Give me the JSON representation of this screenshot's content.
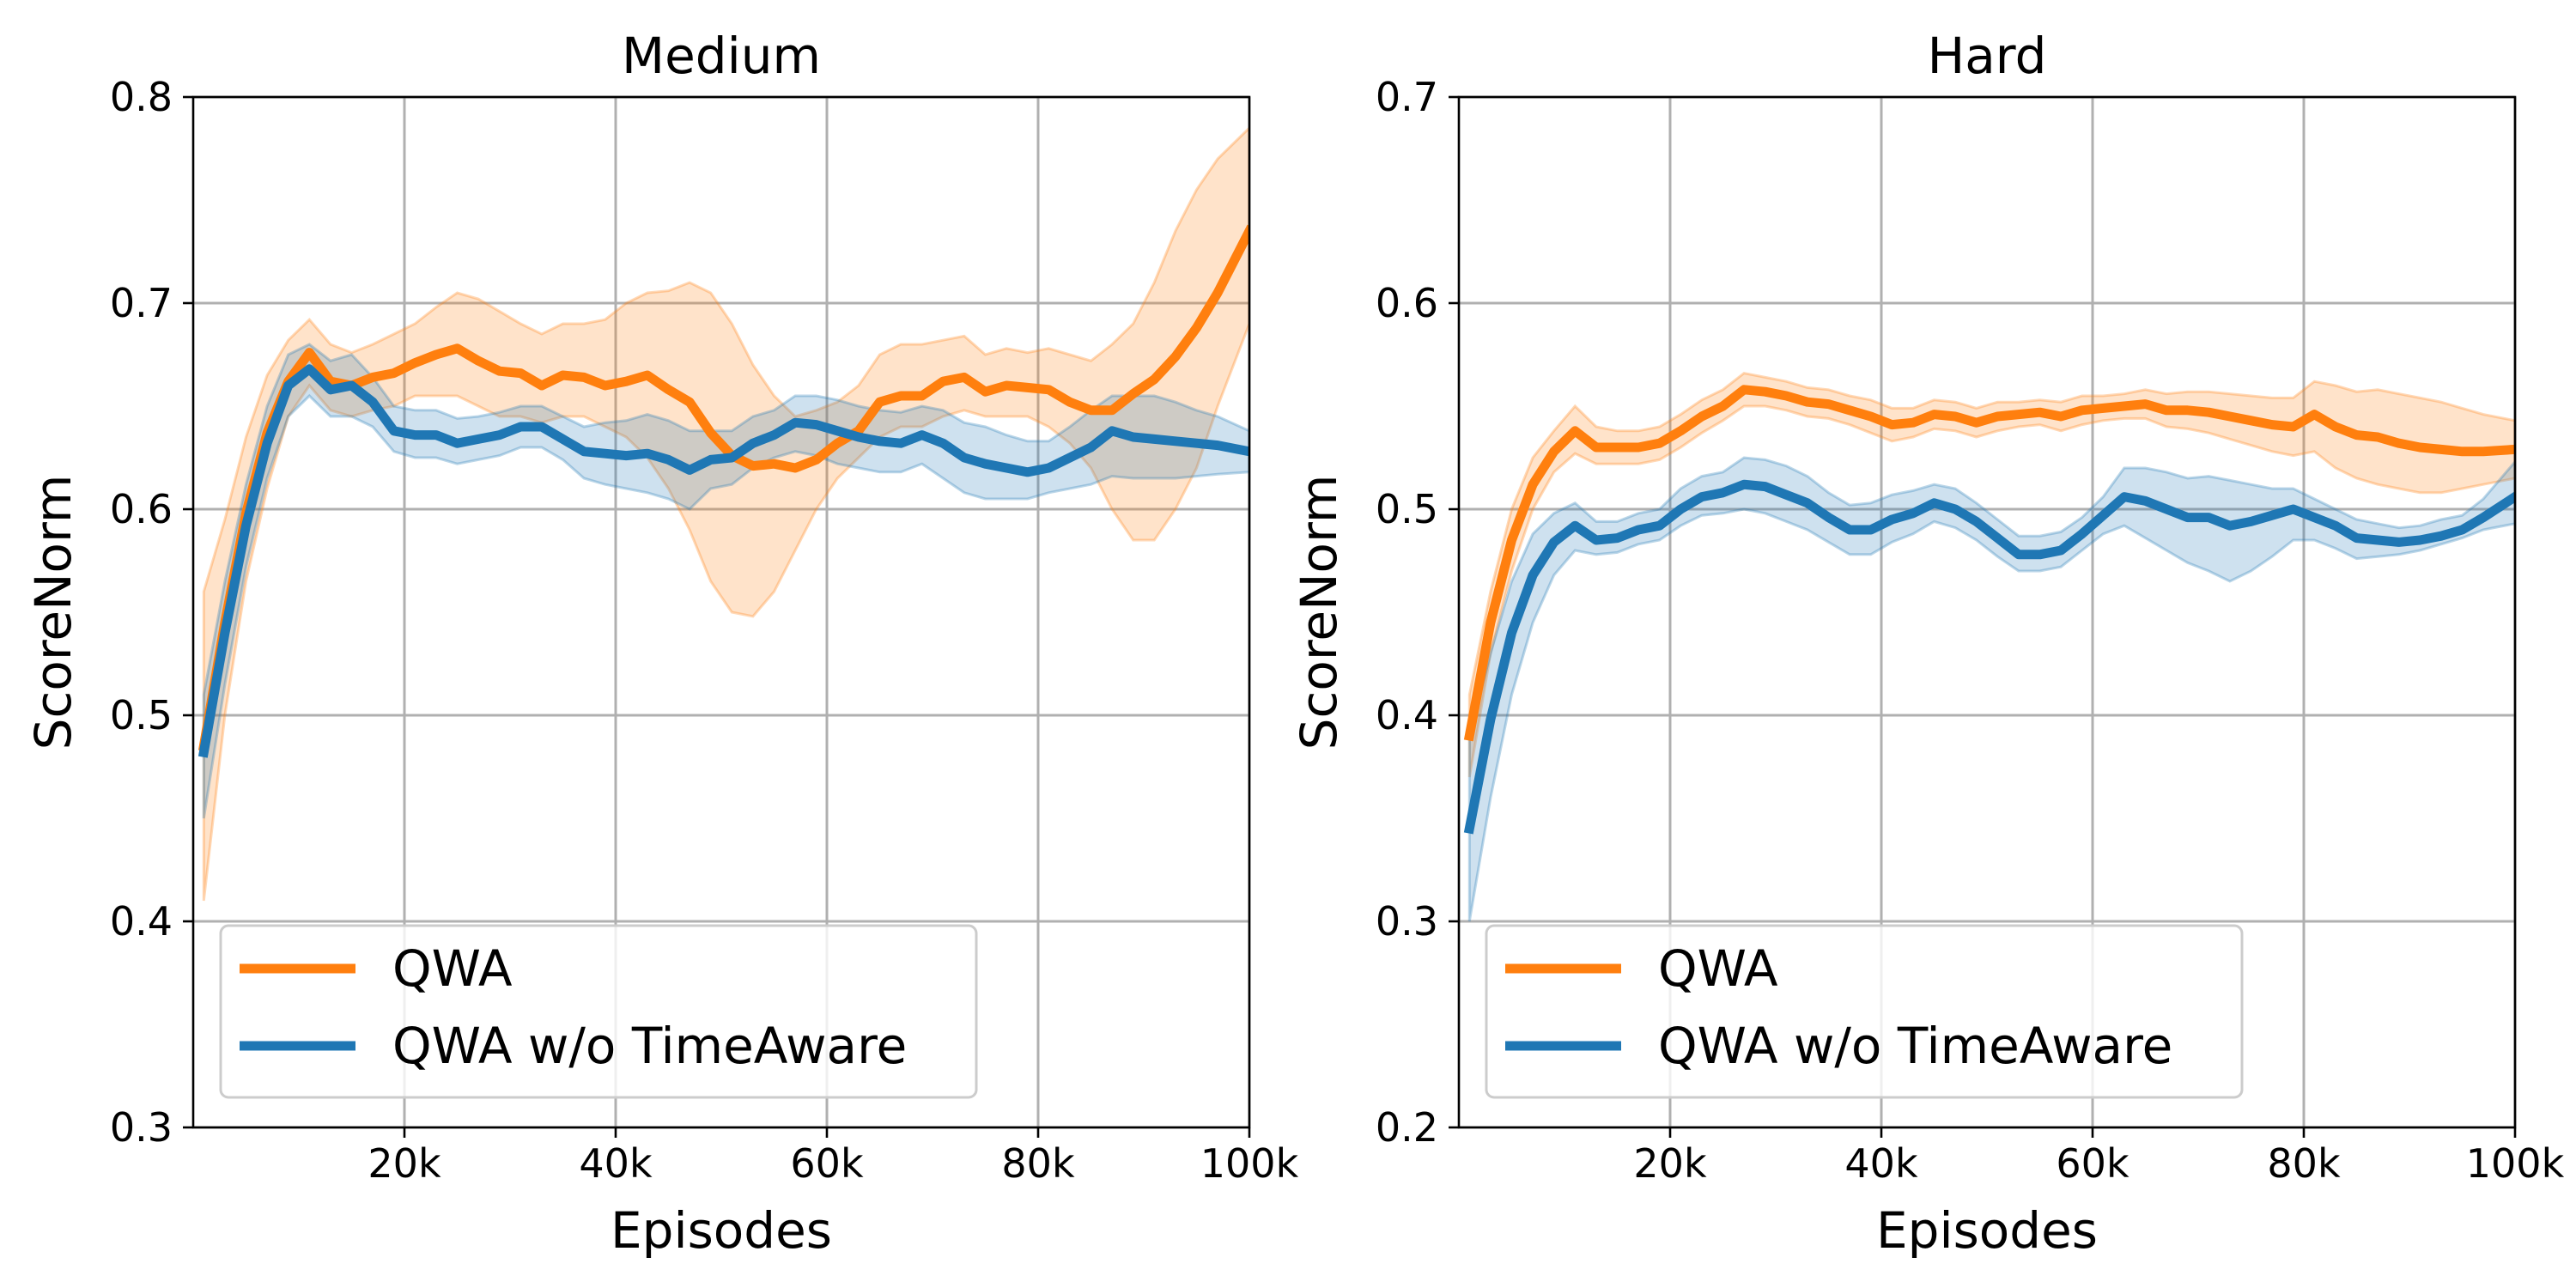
{
  "chart_data": [
    {
      "type": "line",
      "title": "Medium",
      "xlabel": "Episodes",
      "ylabel": "ScoreNorm",
      "xlim": [
        0,
        100000
      ],
      "ylim": [
        0.3,
        0.8
      ],
      "grid": true,
      "legend_position": "lower-left",
      "xticks": [
        20000,
        40000,
        60000,
        80000,
        100000
      ],
      "xtick_labels": [
        "20k",
        "40k",
        "60k",
        "80k",
        "100k"
      ],
      "yticks": [
        0.3,
        0.4,
        0.5,
        0.6,
        0.7,
        0.8
      ],
      "ytick_labels": [
        "0.3",
        "0.4",
        "0.5",
        "0.6",
        "0.7",
        "0.8"
      ],
      "series": [
        {
          "name": "QWA",
          "color": "#ff7f0e",
          "x": [
            1000,
            3000,
            5000,
            7000,
            9000,
            11000,
            13000,
            15000,
            17000,
            19000,
            21000,
            23000,
            25000,
            27000,
            29000,
            31000,
            33000,
            35000,
            37000,
            39000,
            41000,
            43000,
            45000,
            47000,
            49000,
            51000,
            53000,
            55000,
            57000,
            59000,
            61000,
            63000,
            65000,
            67000,
            69000,
            71000,
            73000,
            75000,
            77000,
            79000,
            81000,
            83000,
            85000,
            87000,
            89000,
            91000,
            93000,
            95000,
            97000,
            100000
          ],
          "values": [
            0.485,
            0.545,
            0.598,
            0.637,
            0.662,
            0.676,
            0.662,
            0.66,
            0.664,
            0.666,
            0.671,
            0.675,
            0.678,
            0.672,
            0.667,
            0.666,
            0.66,
            0.665,
            0.664,
            0.66,
            0.662,
            0.665,
            0.658,
            0.652,
            0.637,
            0.626,
            0.621,
            0.622,
            0.62,
            0.624,
            0.632,
            0.638,
            0.652,
            0.655,
            0.655,
            0.662,
            0.664,
            0.657,
            0.66,
            0.659,
            0.658,
            0.652,
            0.648,
            0.648,
            0.656,
            0.663,
            0.674,
            0.688,
            0.705,
            0.735
          ],
          "lower": [
            0.41,
            0.5,
            0.565,
            0.61,
            0.645,
            0.66,
            0.648,
            0.645,
            0.648,
            0.65,
            0.655,
            0.655,
            0.655,
            0.65,
            0.645,
            0.645,
            0.642,
            0.645,
            0.645,
            0.64,
            0.635,
            0.625,
            0.61,
            0.59,
            0.565,
            0.55,
            0.548,
            0.56,
            0.58,
            0.6,
            0.615,
            0.625,
            0.635,
            0.64,
            0.64,
            0.645,
            0.648,
            0.645,
            0.645,
            0.645,
            0.64,
            0.632,
            0.62,
            0.6,
            0.585,
            0.585,
            0.6,
            0.62,
            0.65,
            0.69
          ],
          "upper": [
            0.56,
            0.595,
            0.635,
            0.665,
            0.682,
            0.692,
            0.68,
            0.676,
            0.68,
            0.685,
            0.69,
            0.698,
            0.705,
            0.702,
            0.696,
            0.69,
            0.685,
            0.69,
            0.69,
            0.692,
            0.7,
            0.705,
            0.706,
            0.71,
            0.705,
            0.69,
            0.67,
            0.655,
            0.645,
            0.648,
            0.652,
            0.66,
            0.675,
            0.68,
            0.68,
            0.682,
            0.684,
            0.675,
            0.678,
            0.676,
            0.678,
            0.675,
            0.672,
            0.68,
            0.69,
            0.71,
            0.735,
            0.755,
            0.77,
            0.785
          ]
        },
        {
          "name": "QWA w/o TimeAware",
          "color": "#1f77b4",
          "x": [
            1000,
            3000,
            5000,
            7000,
            9000,
            11000,
            13000,
            15000,
            17000,
            19000,
            21000,
            23000,
            25000,
            27000,
            29000,
            31000,
            33000,
            35000,
            37000,
            39000,
            41000,
            43000,
            45000,
            47000,
            49000,
            51000,
            53000,
            55000,
            57000,
            59000,
            61000,
            63000,
            65000,
            67000,
            69000,
            71000,
            73000,
            75000,
            77000,
            79000,
            81000,
            83000,
            85000,
            87000,
            89000,
            91000,
            93000,
            95000,
            97000,
            100000
          ],
          "values": [
            0.482,
            0.54,
            0.592,
            0.632,
            0.66,
            0.668,
            0.658,
            0.66,
            0.652,
            0.638,
            0.636,
            0.636,
            0.632,
            0.634,
            0.636,
            0.64,
            0.64,
            0.634,
            0.628,
            0.627,
            0.626,
            0.627,
            0.624,
            0.619,
            0.624,
            0.625,
            0.632,
            0.636,
            0.642,
            0.641,
            0.638,
            0.635,
            0.633,
            0.632,
            0.636,
            0.632,
            0.625,
            0.622,
            0.62,
            0.618,
            0.62,
            0.625,
            0.63,
            0.638,
            0.635,
            0.634,
            0.633,
            0.632,
            0.631,
            0.628
          ],
          "lower": [
            0.45,
            0.515,
            0.572,
            0.615,
            0.645,
            0.655,
            0.645,
            0.645,
            0.64,
            0.628,
            0.625,
            0.625,
            0.622,
            0.624,
            0.626,
            0.63,
            0.63,
            0.624,
            0.615,
            0.612,
            0.61,
            0.608,
            0.605,
            0.6,
            0.61,
            0.612,
            0.62,
            0.625,
            0.628,
            0.626,
            0.622,
            0.62,
            0.618,
            0.618,
            0.622,
            0.615,
            0.608,
            0.605,
            0.605,
            0.605,
            0.608,
            0.61,
            0.612,
            0.616,
            0.615,
            0.615,
            0.615,
            0.616,
            0.617,
            0.618
          ],
          "upper": [
            0.51,
            0.565,
            0.612,
            0.65,
            0.675,
            0.68,
            0.672,
            0.675,
            0.664,
            0.65,
            0.648,
            0.648,
            0.644,
            0.645,
            0.647,
            0.65,
            0.65,
            0.645,
            0.64,
            0.642,
            0.643,
            0.646,
            0.643,
            0.638,
            0.638,
            0.638,
            0.645,
            0.648,
            0.655,
            0.655,
            0.653,
            0.65,
            0.648,
            0.647,
            0.65,
            0.648,
            0.642,
            0.64,
            0.636,
            0.633,
            0.633,
            0.64,
            0.648,
            0.655,
            0.655,
            0.655,
            0.652,
            0.648,
            0.645,
            0.638
          ]
        }
      ]
    },
    {
      "type": "line",
      "title": "Hard",
      "xlabel": "Episodes",
      "ylabel": "ScoreNorm",
      "xlim": [
        0,
        100000
      ],
      "ylim": [
        0.2,
        0.7
      ],
      "grid": true,
      "legend_position": "lower-left",
      "xticks": [
        20000,
        40000,
        60000,
        80000,
        100000
      ],
      "xtick_labels": [
        "20k",
        "40k",
        "60k",
        "80k",
        "100k"
      ],
      "yticks": [
        0.2,
        0.3,
        0.4,
        0.5,
        0.6,
        0.7
      ],
      "ytick_labels": [
        "0.2",
        "0.3",
        "0.4",
        "0.5",
        "0.6",
        "0.7"
      ],
      "series": [
        {
          "name": "QWA",
          "color": "#ff7f0e",
          "x": [
            1000,
            3000,
            5000,
            7000,
            9000,
            11000,
            13000,
            15000,
            17000,
            19000,
            21000,
            23000,
            25000,
            27000,
            29000,
            31000,
            33000,
            35000,
            37000,
            39000,
            41000,
            43000,
            45000,
            47000,
            49000,
            51000,
            53000,
            55000,
            57000,
            59000,
            61000,
            63000,
            65000,
            67000,
            69000,
            71000,
            73000,
            75000,
            77000,
            79000,
            81000,
            83000,
            85000,
            87000,
            89000,
            91000,
            93000,
            95000,
            97000,
            100000
          ],
          "values": [
            0.39,
            0.445,
            0.485,
            0.512,
            0.528,
            0.538,
            0.53,
            0.53,
            0.53,
            0.532,
            0.538,
            0.545,
            0.55,
            0.558,
            0.557,
            0.555,
            0.552,
            0.551,
            0.548,
            0.545,
            0.541,
            0.542,
            0.546,
            0.545,
            0.542,
            0.545,
            0.546,
            0.547,
            0.545,
            0.548,
            0.549,
            0.55,
            0.551,
            0.548,
            0.548,
            0.547,
            0.545,
            0.543,
            0.541,
            0.54,
            0.546,
            0.54,
            0.536,
            0.535,
            0.532,
            0.53,
            0.529,
            0.528,
            0.528,
            0.529
          ],
          "lower": [
            0.37,
            0.43,
            0.47,
            0.5,
            0.518,
            0.527,
            0.522,
            0.522,
            0.522,
            0.524,
            0.53,
            0.537,
            0.543,
            0.55,
            0.55,
            0.548,
            0.545,
            0.544,
            0.541,
            0.537,
            0.533,
            0.535,
            0.539,
            0.538,
            0.535,
            0.538,
            0.54,
            0.541,
            0.538,
            0.541,
            0.543,
            0.544,
            0.544,
            0.54,
            0.539,
            0.537,
            0.534,
            0.531,
            0.528,
            0.526,
            0.528,
            0.52,
            0.515,
            0.512,
            0.51,
            0.508,
            0.508,
            0.51,
            0.512,
            0.515
          ],
          "upper": [
            0.41,
            0.46,
            0.5,
            0.525,
            0.538,
            0.55,
            0.54,
            0.538,
            0.538,
            0.54,
            0.546,
            0.553,
            0.558,
            0.566,
            0.564,
            0.562,
            0.559,
            0.558,
            0.555,
            0.553,
            0.549,
            0.549,
            0.553,
            0.552,
            0.549,
            0.552,
            0.552,
            0.553,
            0.552,
            0.555,
            0.555,
            0.556,
            0.558,
            0.556,
            0.557,
            0.557,
            0.556,
            0.555,
            0.554,
            0.554,
            0.562,
            0.56,
            0.557,
            0.558,
            0.556,
            0.554,
            0.552,
            0.549,
            0.546,
            0.543
          ]
        },
        {
          "name": "QWA w/o TimeAware",
          "color": "#1f77b4",
          "x": [
            1000,
            3000,
            5000,
            7000,
            9000,
            11000,
            13000,
            15000,
            17000,
            19000,
            21000,
            23000,
            25000,
            27000,
            29000,
            31000,
            33000,
            35000,
            37000,
            39000,
            41000,
            43000,
            45000,
            47000,
            49000,
            51000,
            53000,
            55000,
            57000,
            59000,
            61000,
            63000,
            65000,
            67000,
            69000,
            71000,
            73000,
            75000,
            77000,
            79000,
            81000,
            83000,
            85000,
            87000,
            89000,
            91000,
            93000,
            95000,
            97000,
            100000
          ],
          "values": [
            0.345,
            0.398,
            0.44,
            0.468,
            0.484,
            0.492,
            0.485,
            0.486,
            0.49,
            0.492,
            0.5,
            0.506,
            0.508,
            0.512,
            0.511,
            0.507,
            0.503,
            0.496,
            0.49,
            0.49,
            0.495,
            0.498,
            0.503,
            0.5,
            0.494,
            0.486,
            0.478,
            0.478,
            0.48,
            0.488,
            0.497,
            0.506,
            0.504,
            0.5,
            0.496,
            0.496,
            0.492,
            0.494,
            0.497,
            0.5,
            0.496,
            0.492,
            0.486,
            0.485,
            0.484,
            0.485,
            0.487,
            0.49,
            0.496,
            0.506
          ],
          "lower": [
            0.3,
            0.36,
            0.41,
            0.445,
            0.468,
            0.48,
            0.478,
            0.479,
            0.483,
            0.485,
            0.492,
            0.497,
            0.498,
            0.5,
            0.498,
            0.494,
            0.49,
            0.484,
            0.478,
            0.478,
            0.484,
            0.488,
            0.494,
            0.491,
            0.485,
            0.477,
            0.47,
            0.47,
            0.472,
            0.48,
            0.488,
            0.492,
            0.486,
            0.48,
            0.474,
            0.47,
            0.465,
            0.47,
            0.477,
            0.485,
            0.485,
            0.481,
            0.476,
            0.477,
            0.478,
            0.48,
            0.483,
            0.486,
            0.49,
            0.493
          ],
          "upper": [
            0.39,
            0.43,
            0.465,
            0.488,
            0.498,
            0.503,
            0.494,
            0.494,
            0.498,
            0.5,
            0.51,
            0.516,
            0.518,
            0.525,
            0.524,
            0.521,
            0.516,
            0.508,
            0.502,
            0.503,
            0.507,
            0.509,
            0.512,
            0.51,
            0.503,
            0.495,
            0.487,
            0.487,
            0.489,
            0.496,
            0.506,
            0.52,
            0.52,
            0.518,
            0.515,
            0.516,
            0.514,
            0.512,
            0.51,
            0.51,
            0.505,
            0.5,
            0.495,
            0.493,
            0.491,
            0.492,
            0.495,
            0.497,
            0.505,
            0.523
          ]
        }
      ]
    }
  ]
}
